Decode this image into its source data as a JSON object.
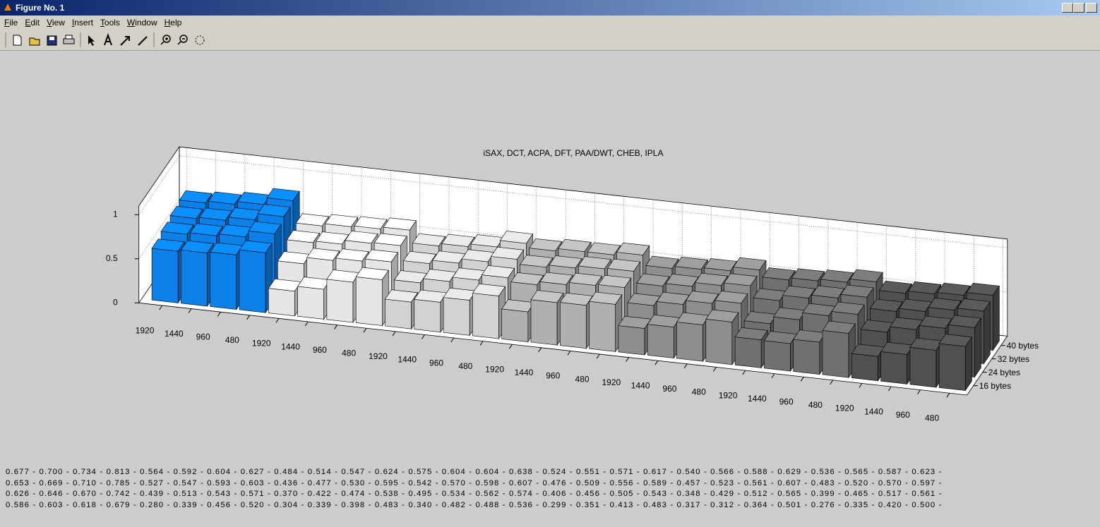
{
  "window": {
    "title": "Figure No. 1"
  },
  "menu": [
    "File",
    "Edit",
    "View",
    "Insert",
    "Tools",
    "Window",
    "Help"
  ],
  "chart_data": {
    "type": "bar3d",
    "title": "iSAX, DCT, ACPA, DFT, PAA/DWT, CHEB, IPLA",
    "categories": [
      "1920",
      "1440",
      "960",
      "480",
      "1920",
      "1440",
      "960",
      "480",
      "1920",
      "1440",
      "960",
      "480",
      "1920",
      "1440",
      "960",
      "480",
      "1920",
      "1440",
      "960",
      "480",
      "1920",
      "1440",
      "960",
      "480",
      "1920",
      "1440",
      "960",
      "480"
    ],
    "group_size": 4,
    "group_colors": [
      "#0a80e8",
      "#e6e6e6",
      "#d2d2d2",
      "#b0b0b0",
      "#8e8e8e",
      "#707070",
      "#505050"
    ],
    "separator": " - ",
    "ylim": [
      0,
      1.1
    ],
    "yticks": [
      0,
      0.5,
      1
    ],
    "grid": true,
    "series": [
      {
        "name": "40 bytes",
        "values": [
          0.677,
          0.7,
          0.734,
          0.813,
          0.564,
          0.592,
          0.604,
          0.627,
          0.484,
          0.514,
          0.547,
          0.624,
          0.575,
          0.604,
          0.604,
          0.638,
          0.524,
          0.551,
          0.571,
          0.617,
          0.54,
          0.566,
          0.588,
          0.629,
          0.536,
          0.565,
          0.587,
          0.623
        ],
        "value_labels": [
          "0.677",
          "0.700",
          "0.734",
          "0.813",
          "0.564",
          "0.592",
          "0.604",
          "0.627",
          "0.484",
          "0.514",
          "0.547",
          "0.624",
          "0.575",
          "0.604",
          "0.604",
          "0.638",
          "0.524",
          "0.551",
          "0.571",
          "0.617",
          "0.540",
          "0.566",
          "0.588",
          "0.629",
          "0.536",
          "0.565",
          "0.587",
          "0.623"
        ]
      },
      {
        "name": "32 bytes",
        "values": [
          0.653,
          0.669,
          0.71,
          0.785,
          0.527,
          0.547,
          0.593,
          0.603,
          0.436,
          0.477,
          0.53,
          0.595,
          0.542,
          0.57,
          0.598,
          0.607,
          0.476,
          0.509,
          0.556,
          0.589,
          0.457,
          0.523,
          0.561,
          0.607,
          0.483,
          0.52,
          0.57,
          0.597
        ],
        "value_labels": [
          "0.653",
          "0.669",
          "0.710",
          "0.785",
          "0.527",
          "0.547",
          "0.593",
          "0.603",
          "0.436",
          "0.477",
          "0.530",
          "0.595",
          "0.542",
          "0.570",
          "0.598",
          "0.607",
          "0.476",
          "0.509",
          "0.556",
          "0.589",
          "0.457",
          "0.523",
          "0.561",
          "0.607",
          "0.483",
          "0.520",
          "0.570",
          "0.597"
        ]
      },
      {
        "name": "24 bytes",
        "values": [
          0.626,
          0.646,
          0.67,
          0.742,
          0.439,
          0.513,
          0.543,
          0.571,
          0.37,
          0.422,
          0.474,
          0.538,
          0.495,
          0.534,
          0.562,
          0.574,
          0.406,
          0.456,
          0.505,
          0.543,
          0.348,
          0.429,
          0.512,
          0.565,
          0.399,
          0.465,
          0.517,
          0.561
        ],
        "value_labels": [
          "0.626",
          "0.646",
          "0.670",
          "0.742",
          "0.439",
          "0.513",
          "0.543",
          "0.571",
          "0.370",
          "0.422",
          "0.474",
          "0.538",
          "0.495",
          "0.534",
          "0.562",
          "0.574",
          "0.406",
          "0.456",
          "0.505",
          "0.543",
          "0.348",
          "0.429",
          "0.512",
          "0.565",
          "0.399",
          "0.465",
          "0.517",
          "0.561"
        ]
      },
      {
        "name": "16 bytes",
        "values": [
          0.586,
          0.603,
          0.618,
          0.679,
          0.28,
          0.339,
          0.456,
          0.52,
          0.304,
          0.339,
          0.398,
          0.483,
          0.34,
          0.482,
          0.488,
          0.536,
          0.299,
          0.351,
          0.413,
          0.483,
          0.317,
          0.312,
          0.364,
          0.501,
          0.276,
          0.335,
          0.42,
          0.5
        ],
        "value_labels": [
          "0.586",
          "0.603",
          "0.618",
          "0.679",
          "0.280",
          "0.339",
          "0.456",
          "0.520",
          "0.304",
          "0.339",
          "0.398",
          "0.483",
          "0.340",
          "0.482",
          "0.488",
          "0.536",
          "0.299",
          "0.351",
          "0.413",
          "0.483",
          "0.317",
          "0.312",
          "0.364",
          "0.501",
          "0.276",
          "0.335",
          "0.420",
          "0.500"
        ]
      }
    ]
  }
}
